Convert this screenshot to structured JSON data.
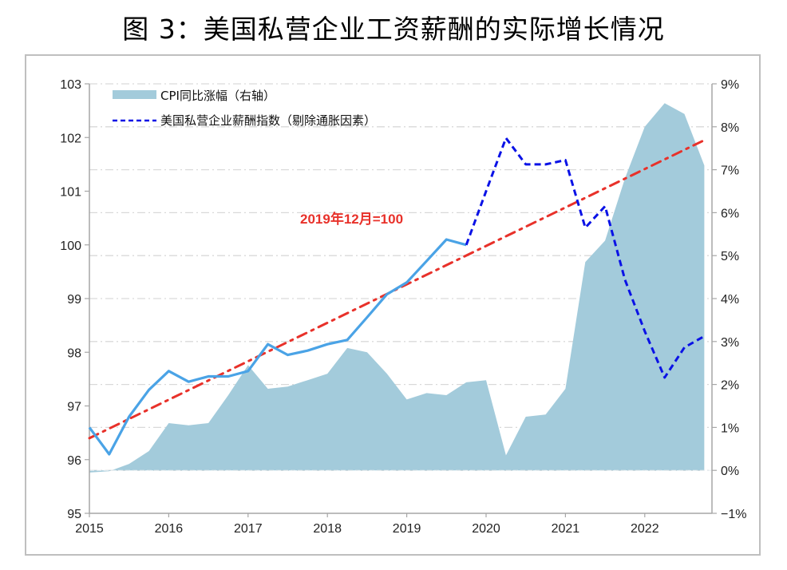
{
  "title": "图 3：美国私营企业工资薪酬的实际增长情况",
  "chart_data": {
    "type": "line",
    "title": "图 3：美国私营企业工资薪酬的实际增长情况",
    "x_tick_labels": [
      "2015",
      "2016",
      "2017",
      "2018",
      "2019",
      "2020",
      "2021",
      "2022"
    ],
    "x_range": [
      2015.0,
      2022.85
    ],
    "left_axis": {
      "range": [
        95,
        103
      ],
      "ticks": [
        "95",
        "96",
        "97",
        "98",
        "99",
        "100",
        "101",
        "102",
        "103"
      ]
    },
    "right_axis": {
      "range": [
        -1,
        9
      ],
      "ticks": [
        "-1%",
        "0%",
        "1%",
        "2%",
        "3%",
        "4%",
        "5%",
        "6%",
        "7%",
        "8%",
        "9%"
      ]
    },
    "grid": true,
    "legend_position": "top-left",
    "legend": [
      {
        "label": "CPI同比涨幅（右轴）",
        "style": "area"
      },
      {
        "label": "美国私营企业薪酬指数（剔除通胀因素）",
        "style": "dashed"
      }
    ],
    "annotation": "2019年12月=100",
    "x": [
      2015.0,
      2015.25,
      2015.5,
      2015.75,
      2016.0,
      2016.25,
      2016.5,
      2016.75,
      2017.0,
      2017.25,
      2017.5,
      2017.75,
      2018.0,
      2018.25,
      2018.5,
      2018.75,
      2019.0,
      2019.25,
      2019.5,
      2019.75,
      2020.0,
      2020.25,
      2020.5,
      2020.75,
      2021.0,
      2021.25,
      2021.5,
      2021.75,
      2022.0,
      2022.25,
      2022.5,
      2022.75
    ],
    "series": [
      {
        "name": "CPI同比涨幅（右轴）",
        "axis": "right",
        "type": "area",
        "color": "#a3cbdb",
        "values": [
          -0.05,
          -0.02,
          0.15,
          0.45,
          1.1,
          1.05,
          1.1,
          1.75,
          2.45,
          1.9,
          1.95,
          2.1,
          2.25,
          2.85,
          2.75,
          2.25,
          1.65,
          1.8,
          1.75,
          2.05,
          2.1,
          0.35,
          1.25,
          1.3,
          1.9,
          4.85,
          5.35,
          6.8,
          8.0,
          8.55,
          8.3,
          7.1
        ]
      },
      {
        "name": "美国私营企业薪酬指数（剔除通胀因素）",
        "axis": "left",
        "type": "line",
        "segments": [
          {
            "style": "solid",
            "color": "#4aa3e6",
            "from_index": 0,
            "to_index": 19
          },
          {
            "style": "dashed",
            "color": "#0a12e6",
            "from_index": 19,
            "to_index": 31
          }
        ],
        "values": [
          96.6,
          96.1,
          96.8,
          97.3,
          97.65,
          97.45,
          97.55,
          97.55,
          97.65,
          98.15,
          97.95,
          98.03,
          98.15,
          98.23,
          98.65,
          99.08,
          99.3,
          99.7,
          100.1,
          100.0,
          101.0,
          101.99,
          101.5,
          101.5,
          101.58,
          100.32,
          100.72,
          99.35,
          98.39,
          97.53,
          98.09,
          98.3
        ]
      },
      {
        "name": "trend",
        "axis": "left",
        "type": "line",
        "style": "dash-dot",
        "color": "#e8312a",
        "x": [
          2015.0,
          2022.75
        ],
        "values": [
          96.4,
          101.95
        ]
      }
    ]
  }
}
